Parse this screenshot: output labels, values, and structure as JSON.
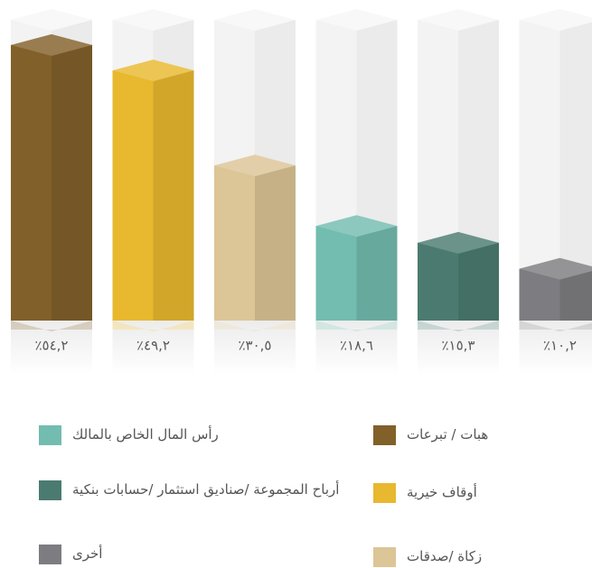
{
  "chart_data": {
    "type": "bar",
    "categories": [
      "هبات / تبرعات",
      "أوقاف خيرية",
      "زكاة /صدقات",
      "رأس المال الخاص بالمالك",
      "أرباح المجموعة /صناديق استثمار /حسابات بنكية",
      "أخرى"
    ],
    "values": [
      54.2,
      49.2,
      30.5,
      18.6,
      15.3,
      10.2
    ],
    "value_labels": [
      "٪٥٤,٢",
      "٪٤٩,٢",
      "٪٣٠,٥",
      "٪١٨,٦",
      "٪١٥,٣",
      "٪١٠,٢"
    ],
    "colors": [
      "#82602a",
      "#e8b82e",
      "#dcc596",
      "#73bcb0",
      "#4b7b70",
      "#7d7c80"
    ]
  }
}
